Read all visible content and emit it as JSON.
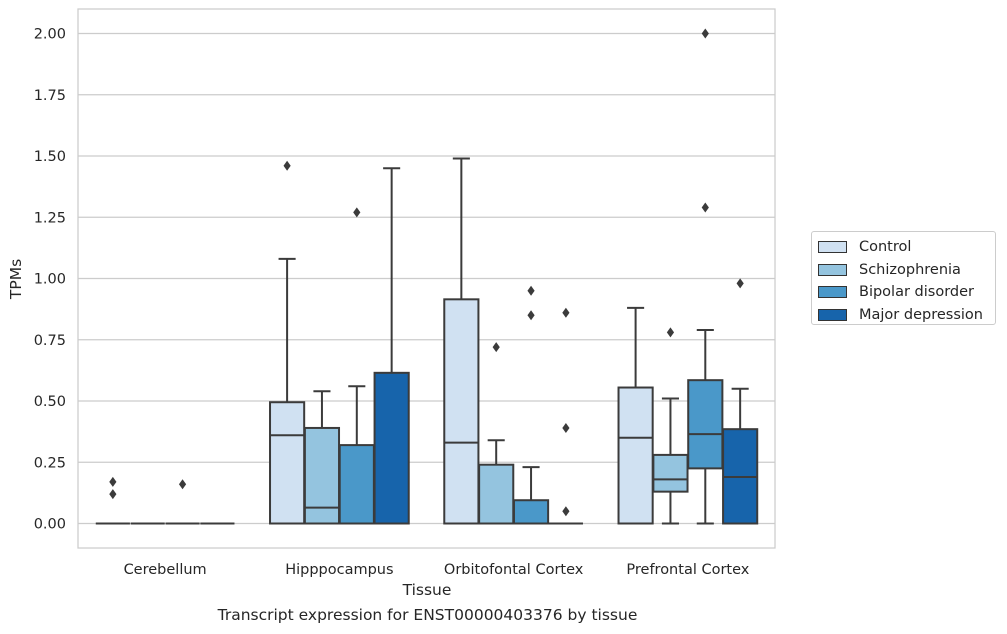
{
  "chart_data": {
    "type": "box",
    "title": "",
    "xlabel": "Tissue",
    "ylabel": "TPMs",
    "caption": "Transcript expression for ENST00000403376 by tissue",
    "ylim": [
      -0.1,
      2.1
    ],
    "yticks": [
      "0.00",
      "0.25",
      "0.50",
      "0.75",
      "1.00",
      "1.25",
      "1.50",
      "1.75",
      "2.00"
    ],
    "grid": true,
    "legend_position": "right",
    "categories": [
      "Cerebellum",
      "Hipppocampus",
      "Orbitofontal Cortex",
      "Prefrontal Cortex"
    ],
    "series": [
      {
        "name": "Control",
        "color": "#d0e1f2",
        "boxes": [
          {
            "q1": 0,
            "median": 0,
            "q3": 0,
            "whislo": 0,
            "whishi": 0,
            "fliers": [
              0.17,
              0.12
            ]
          },
          {
            "q1": 0,
            "median": 0.36,
            "q3": 0.495,
            "whislo": 0,
            "whishi": 1.08,
            "fliers": [
              1.46
            ]
          },
          {
            "q1": 0,
            "median": 0.33,
            "q3": 0.915,
            "whislo": 0,
            "whishi": 1.49,
            "fliers": []
          },
          {
            "q1": 0,
            "median": 0.35,
            "q3": 0.555,
            "whislo": 0,
            "whishi": 0.88,
            "fliers": []
          }
        ]
      },
      {
        "name": "Schizophrenia",
        "color": "#94c4df",
        "boxes": [
          {
            "q1": 0,
            "median": 0,
            "q3": 0,
            "whislo": 0,
            "whishi": 0,
            "fliers": []
          },
          {
            "q1": 0,
            "median": 0.065,
            "q3": 0.39,
            "whislo": 0,
            "whishi": 0.54,
            "fliers": []
          },
          {
            "q1": 0,
            "median": 0,
            "q3": 0.24,
            "whislo": 0,
            "whishi": 0.34,
            "fliers": [
              0.72
            ]
          },
          {
            "q1": 0.13,
            "median": 0.18,
            "q3": 0.28,
            "whislo": 0,
            "whishi": 0.51,
            "fliers": [
              0.78
            ]
          }
        ]
      },
      {
        "name": "Bipolar disorder",
        "color": "#4a98c9",
        "boxes": [
          {
            "q1": 0,
            "median": 0,
            "q3": 0,
            "whislo": 0,
            "whishi": 0,
            "fliers": [
              0.16
            ]
          },
          {
            "q1": 0,
            "median": 0,
            "q3": 0.32,
            "whislo": 0,
            "whishi": 0.56,
            "fliers": [
              1.27
            ]
          },
          {
            "q1": 0,
            "median": 0,
            "q3": 0.095,
            "whislo": 0,
            "whishi": 0.23,
            "fliers": [
              0.95,
              0.85
            ]
          },
          {
            "q1": 0.225,
            "median": 0.365,
            "q3": 0.585,
            "whislo": 0,
            "whishi": 0.79,
            "fliers": [
              2.0,
              1.29
            ]
          }
        ]
      },
      {
        "name": "Major depression",
        "color": "#1764ab",
        "boxes": [
          {
            "q1": 0,
            "median": 0,
            "q3": 0,
            "whislo": 0,
            "whishi": 0,
            "fliers": []
          },
          {
            "q1": 0,
            "median": 0,
            "q3": 0.615,
            "whislo": 0,
            "whishi": 1.45,
            "fliers": []
          },
          {
            "q1": 0,
            "median": 0,
            "q3": 0,
            "whislo": 0,
            "whishi": 0,
            "fliers": [
              0.86,
              0.39,
              0.05
            ]
          },
          {
            "q1": 0,
            "median": 0.19,
            "q3": 0.385,
            "whislo": 0,
            "whishi": 0.55,
            "fliers": [
              0.98
            ]
          }
        ]
      }
    ]
  }
}
